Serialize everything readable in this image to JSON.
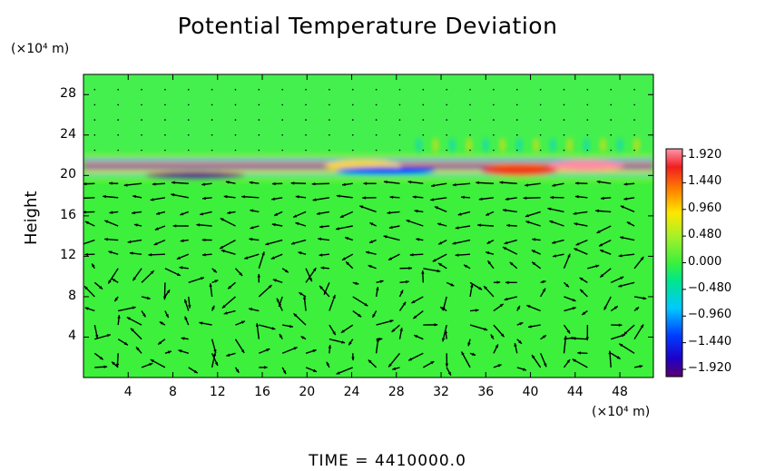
{
  "chart_data": {
    "type": "heatmap",
    "title": "Potential Temperature Deviation",
    "ylabel": "Height",
    "xunit": "(×10⁴ m)",
    "yunit": "(×10⁴ m)",
    "xticks": [
      "4",
      "8",
      "12",
      "16",
      "20",
      "24",
      "28",
      "32",
      "36",
      "40",
      "44",
      "48"
    ],
    "xtick_values": [
      4,
      8,
      12,
      16,
      20,
      24,
      28,
      32,
      36,
      40,
      44,
      48
    ],
    "yticks": [
      "4",
      "8",
      "12",
      "16",
      "20",
      "24",
      "28"
    ],
    "ytick_values": [
      4,
      8,
      12,
      16,
      20,
      24,
      28
    ],
    "xlim": [
      0,
      51
    ],
    "ylim": [
      0,
      30
    ],
    "colorbar": {
      "labels": [
        "1.920",
        "1.440",
        "0.960",
        "0.480",
        "0.000",
        "−0.480",
        "−0.960",
        "−1.440",
        "−1.920"
      ],
      "min": -1.92,
      "max": 1.92
    },
    "field": {
      "background_value": 0.0,
      "stratified_band_y": [
        19.5,
        22
      ],
      "warm_spots": [
        {
          "x": 45,
          "y": 21,
          "value": 1.9
        },
        {
          "x": 39,
          "y": 20.5,
          "value": 1.5
        },
        {
          "x": 25,
          "y": 21,
          "value": 0.9
        }
      ],
      "cold_spots": [
        {
          "x": 10,
          "y": 20,
          "value": -1.8
        },
        {
          "x": 27,
          "y": 20.5,
          "value": -1.2
        }
      ]
    },
    "vectors": "wind field arrows over lower domain (0–20)"
  },
  "footer": {
    "time_label": "TIME  =  4410000.0"
  },
  "colors": {
    "background_field": "#3cf03c",
    "axis": "#000000"
  }
}
